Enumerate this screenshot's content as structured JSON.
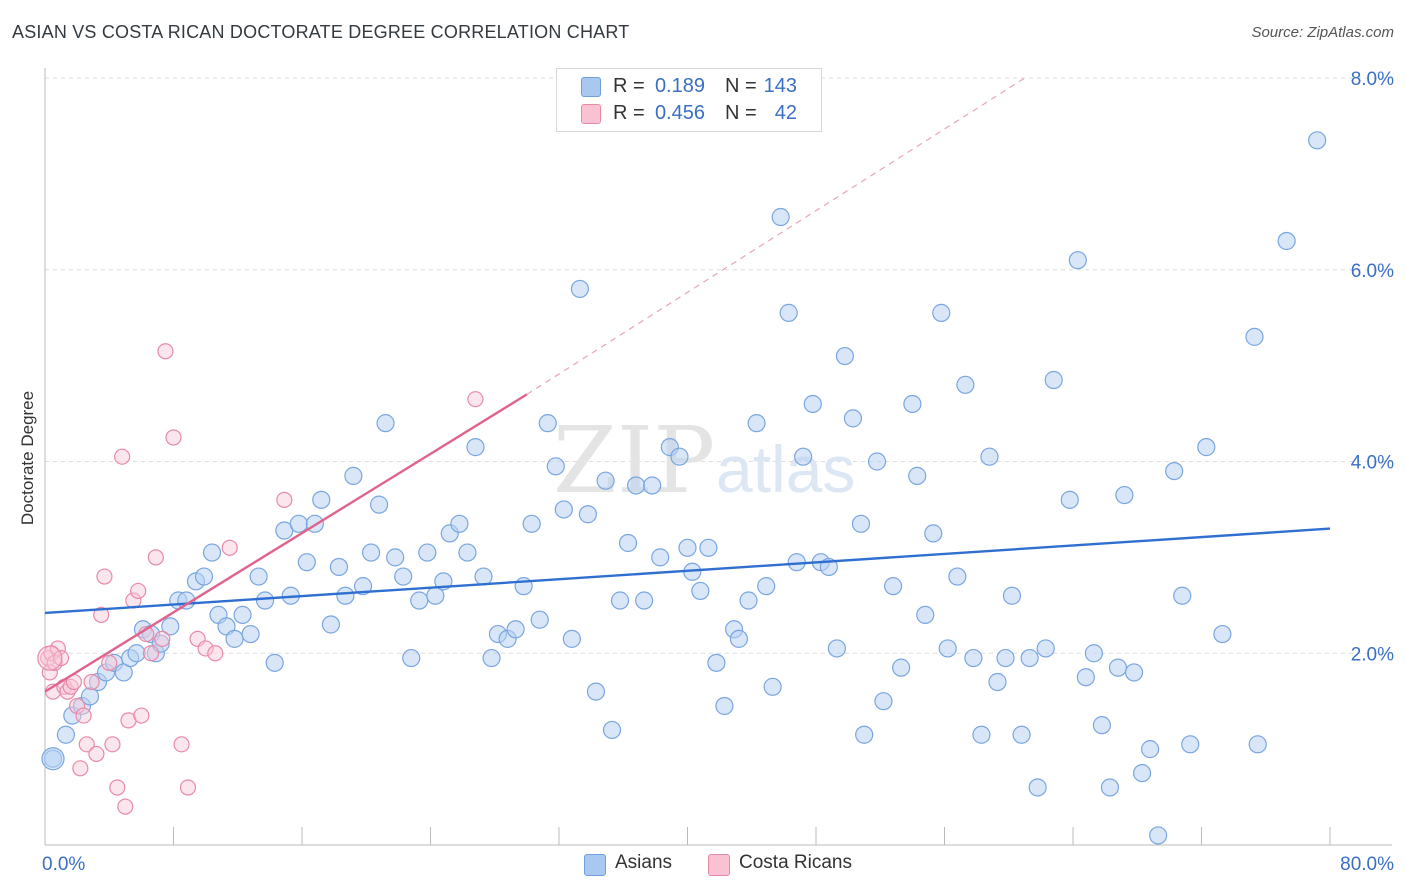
{
  "title": "ASIAN VS COSTA RICAN DOCTORATE DEGREE CORRELATION CHART",
  "source": "Source: ZipAtlas.com",
  "watermark": {
    "zip": "ZIP",
    "atlas": "atlas"
  },
  "legend": {
    "rows": [
      {
        "r_label": "R =",
        "r_value": "0.189",
        "n_label": "N =",
        "n_value": "143",
        "color": "#a9c8f0",
        "border": "#6f9fdc"
      },
      {
        "r_label": "R =",
        "r_value": "0.456",
        "n_label": "N =",
        "n_value": "42",
        "color": "#f8c2d2",
        "border": "#e88aa8"
      }
    ]
  },
  "bottom_legend": [
    {
      "label": "Asians",
      "color": "#a9c8f0",
      "border": "#6f9fdc"
    },
    {
      "label": "Costa Ricans",
      "color": "#f8c2d2",
      "border": "#e88aa8"
    }
  ],
  "chart_data": {
    "type": "scatter",
    "title": "ASIAN VS COSTA RICAN DOCTORATE DEGREE CORRELATION CHART",
    "xlabel": "",
    "ylabel": "Doctorate Degree",
    "xlim": [
      0,
      80
    ],
    "ylim": [
      0,
      8.0
    ],
    "x_tick_labels": [
      "0.0%",
      "80.0%"
    ],
    "y_ticks": [
      2.0,
      4.0,
      6.0,
      8.0
    ],
    "y_tick_labels": [
      "2.0%",
      "4.0%",
      "6.0%",
      "8.0%"
    ],
    "grid": true,
    "legend_position": "top-center",
    "series": [
      {
        "name": "Asians",
        "color": "#7aa6e0",
        "fill": "#b8d2f2",
        "line_color": "#2f6fd0",
        "trend": {
          "x": [
            0,
            80
          ],
          "y": [
            2.42,
            3.3
          ]
        },
        "points": [
          [
            0.5,
            0.9
          ],
          [
            1.3,
            1.15
          ],
          [
            1.7,
            1.35
          ],
          [
            2.3,
            1.45
          ],
          [
            2.8,
            1.55
          ],
          [
            3.3,
            1.7
          ],
          [
            3.8,
            1.8
          ],
          [
            4.3,
            1.9
          ],
          [
            4.9,
            1.8
          ],
          [
            5.3,
            1.95
          ],
          [
            5.7,
            2.0
          ],
          [
            6.1,
            2.25
          ],
          [
            6.6,
            2.2
          ],
          [
            6.9,
            2.0
          ],
          [
            7.2,
            2.1
          ],
          [
            7.8,
            2.28
          ],
          [
            8.3,
            2.55
          ],
          [
            8.8,
            2.55
          ],
          [
            9.4,
            2.75
          ],
          [
            9.9,
            2.8
          ],
          [
            10.4,
            3.05
          ],
          [
            10.8,
            2.4
          ],
          [
            11.3,
            2.28
          ],
          [
            11.8,
            2.15
          ],
          [
            12.3,
            2.4
          ],
          [
            12.8,
            2.2
          ],
          [
            13.3,
            2.8
          ],
          [
            13.7,
            2.55
          ],
          [
            14.3,
            1.9
          ],
          [
            14.9,
            3.28
          ],
          [
            15.3,
            2.6
          ],
          [
            15.8,
            3.35
          ],
          [
            16.3,
            2.95
          ],
          [
            16.8,
            3.35
          ],
          [
            17.2,
            3.6
          ],
          [
            17.8,
            2.3
          ],
          [
            18.3,
            2.9
          ],
          [
            18.7,
            2.6
          ],
          [
            19.2,
            3.85
          ],
          [
            19.8,
            2.7
          ],
          [
            20.3,
            3.05
          ],
          [
            20.8,
            3.55
          ],
          [
            21.2,
            4.4
          ],
          [
            21.8,
            3.0
          ],
          [
            22.3,
            2.8
          ],
          [
            22.8,
            1.95
          ],
          [
            23.3,
            2.55
          ],
          [
            23.8,
            3.05
          ],
          [
            24.3,
            2.6
          ],
          [
            24.8,
            2.75
          ],
          [
            25.2,
            3.25
          ],
          [
            25.8,
            3.35
          ],
          [
            26.3,
            3.05
          ],
          [
            26.8,
            4.15
          ],
          [
            27.3,
            2.8
          ],
          [
            27.8,
            1.95
          ],
          [
            28.2,
            2.2
          ],
          [
            28.8,
            2.15
          ],
          [
            29.3,
            2.25
          ],
          [
            29.8,
            2.7
          ],
          [
            30.3,
            3.35
          ],
          [
            30.8,
            2.35
          ],
          [
            31.3,
            4.4
          ],
          [
            31.8,
            3.95
          ],
          [
            32.3,
            3.5
          ],
          [
            32.8,
            2.15
          ],
          [
            33.3,
            5.8
          ],
          [
            33.8,
            3.45
          ],
          [
            34.3,
            1.6
          ],
          [
            34.9,
            3.8
          ],
          [
            35.3,
            1.2
          ],
          [
            35.8,
            2.55
          ],
          [
            36.3,
            3.15
          ],
          [
            36.8,
            3.75
          ],
          [
            37.3,
            2.55
          ],
          [
            37.8,
            3.75
          ],
          [
            38.3,
            3.0
          ],
          [
            38.9,
            4.15
          ],
          [
            39.5,
            4.05
          ],
          [
            40.0,
            3.1
          ],
          [
            40.3,
            2.85
          ],
          [
            40.8,
            2.65
          ],
          [
            41.3,
            3.1
          ],
          [
            41.8,
            1.9
          ],
          [
            42.3,
            1.45
          ],
          [
            42.9,
            2.25
          ],
          [
            43.2,
            2.15
          ],
          [
            43.8,
            2.55
          ],
          [
            44.3,
            4.4
          ],
          [
            44.9,
            2.7
          ],
          [
            45.3,
            1.65
          ],
          [
            45.8,
            6.55
          ],
          [
            46.3,
            5.55
          ],
          [
            46.8,
            2.95
          ],
          [
            47.2,
            4.05
          ],
          [
            47.8,
            4.6
          ],
          [
            48.3,
            2.95
          ],
          [
            48.8,
            2.9
          ],
          [
            49.3,
            2.05
          ],
          [
            49.8,
            5.1
          ],
          [
            50.3,
            4.45
          ],
          [
            50.8,
            3.35
          ],
          [
            51.0,
            1.15
          ],
          [
            51.8,
            4.0
          ],
          [
            52.2,
            1.5
          ],
          [
            52.8,
            2.7
          ],
          [
            53.3,
            1.85
          ],
          [
            54.0,
            4.6
          ],
          [
            54.3,
            3.85
          ],
          [
            54.8,
            2.4
          ],
          [
            55.3,
            3.25
          ],
          [
            55.8,
            5.55
          ],
          [
            56.2,
            2.05
          ],
          [
            56.8,
            2.8
          ],
          [
            57.3,
            4.8
          ],
          [
            57.8,
            1.95
          ],
          [
            58.3,
            1.15
          ],
          [
            58.8,
            4.05
          ],
          [
            59.3,
            1.7
          ],
          [
            59.8,
            1.95
          ],
          [
            60.2,
            2.6
          ],
          [
            60.8,
            1.15
          ],
          [
            61.3,
            1.95
          ],
          [
            61.8,
            0.6
          ],
          [
            62.3,
            2.05
          ],
          [
            62.8,
            4.85
          ],
          [
            63.8,
            3.6
          ],
          [
            64.3,
            6.1
          ],
          [
            64.8,
            1.75
          ],
          [
            65.3,
            2.0
          ],
          [
            65.8,
            1.25
          ],
          [
            66.3,
            0.6
          ],
          [
            66.8,
            1.85
          ],
          [
            67.2,
            3.65
          ],
          [
            67.8,
            1.8
          ],
          [
            68.3,
            0.75
          ],
          [
            68.8,
            1.0
          ],
          [
            69.3,
            0.1
          ],
          [
            70.3,
            3.9
          ],
          [
            70.8,
            2.6
          ],
          [
            71.3,
            1.05
          ],
          [
            72.3,
            4.15
          ],
          [
            73.3,
            2.2
          ],
          [
            75.3,
            5.3
          ],
          [
            75.5,
            1.05
          ],
          [
            77.3,
            6.3
          ],
          [
            79.2,
            7.35
          ]
        ]
      },
      {
        "name": "Costa Ricans",
        "color": "#e88aa8",
        "fill": "#f8c8d6",
        "line_color": "#e0638e",
        "trend": {
          "x": [
            0,
            30
          ],
          "y": [
            1.6,
            4.7
          ]
        },
        "trend_extension": {
          "x": [
            30,
            61
          ],
          "y": [
            4.7,
            8.0
          ]
        },
        "points": [
          [
            0.2,
            1.95
          ],
          [
            0.3,
            1.8
          ],
          [
            0.4,
            2.0
          ],
          [
            0.5,
            1.6
          ],
          [
            0.6,
            1.9
          ],
          [
            0.8,
            2.05
          ],
          [
            1.0,
            1.95
          ],
          [
            1.2,
            1.65
          ],
          [
            1.4,
            1.6
          ],
          [
            1.6,
            1.65
          ],
          [
            1.8,
            1.7
          ],
          [
            2.0,
            1.45
          ],
          [
            2.2,
            0.8
          ],
          [
            2.4,
            1.35
          ],
          [
            2.6,
            1.05
          ],
          [
            2.9,
            1.7
          ],
          [
            3.2,
            0.95
          ],
          [
            3.5,
            2.4
          ],
          [
            3.7,
            2.8
          ],
          [
            4.0,
            1.9
          ],
          [
            4.2,
            1.05
          ],
          [
            4.5,
            0.6
          ],
          [
            4.8,
            4.05
          ],
          [
            5.0,
            0.4
          ],
          [
            5.2,
            1.3
          ],
          [
            5.5,
            2.55
          ],
          [
            5.8,
            2.65
          ],
          [
            6.0,
            1.35
          ],
          [
            6.3,
            2.2
          ],
          [
            6.6,
            2.0
          ],
          [
            6.9,
            3.0
          ],
          [
            7.3,
            2.15
          ],
          [
            7.5,
            5.15
          ],
          [
            8.0,
            4.25
          ],
          [
            8.5,
            1.05
          ],
          [
            8.9,
            0.6
          ],
          [
            9.5,
            2.15
          ],
          [
            10.0,
            2.05
          ],
          [
            10.6,
            2.0
          ],
          [
            11.5,
            3.1
          ],
          [
            14.9,
            3.6
          ],
          [
            26.8,
            4.65
          ]
        ]
      }
    ]
  }
}
